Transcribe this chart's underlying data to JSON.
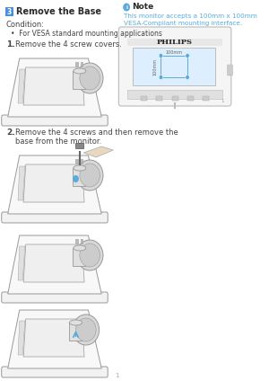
{
  "bg_color": "#ffffff",
  "title": "Remove the Base",
  "title_number": "3",
  "title_color": "#2a2a2a",
  "title_number_bg": "#4a90d9",
  "condition_text": "Condition:",
  "condition_bullet": "For VESA standard mounting applications",
  "step1_label": "1.",
  "step1_text": "Remove the 4 screw covers.",
  "step2_label": "2.",
  "step2_text_l1": "Remove the 4 screws and then remove the",
  "step2_text_l2": "base from the monitor.",
  "note_title": "Note",
  "note_icon_color": "#5aabdc",
  "note_text_line1": "This monitor accepts a 100mm x 100mm",
  "note_text_line2": "VESA-Compliant mounting interface.",
  "note_text_color": "#5aabdc",
  "text_color": "#444444",
  "dim_100mm_h": "100mm",
  "dim_100mm_v": "100mm",
  "dot_color": "#5aabdc",
  "line_color": "#5aabdc",
  "monitor_border_color": "#bbbbbb",
  "philips_text": "PHILIPS",
  "page_num": "1",
  "illus_edge": "#999999",
  "illus_face_base": "#f2f2f2",
  "illus_face_top": "#f8f8f8",
  "illus_face_arm": "#e0e0e0",
  "illus_face_disc": "#d8d8d8"
}
